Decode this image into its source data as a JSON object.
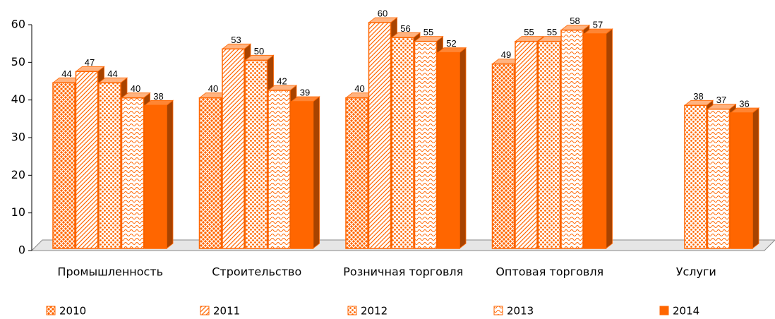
{
  "chart_data": {
    "type": "bar3d",
    "categories": [
      "Промышленность",
      "Строительство",
      "Розничная торговля",
      "Оптовая торговля",
      "Услуги"
    ],
    "series": [
      {
        "name": "2010",
        "color": "#ff6600",
        "pattern": "crosshatch",
        "values": [
          44,
          40,
          40,
          49,
          null
        ]
      },
      {
        "name": "2011",
        "color": "#ff6600",
        "pattern": "diagonal",
        "values": [
          47,
          53,
          60,
          55,
          null
        ]
      },
      {
        "name": "2012",
        "color": "#ff6600",
        "pattern": "dots",
        "values": [
          44,
          50,
          56,
          55,
          38
        ]
      },
      {
        "name": "2013",
        "color": "#ff6600",
        "pattern": "wave",
        "values": [
          40,
          42,
          55,
          58,
          37
        ]
      },
      {
        "name": "2014",
        "color": "#ff6600",
        "pattern": "solid",
        "values": [
          38,
          39,
          52,
          57,
          36
        ]
      }
    ],
    "ylim": [
      0,
      60
    ],
    "yticks": [
      0,
      10,
      20,
      30,
      40,
      50,
      60
    ],
    "grid": false,
    "legend": "bottom"
  }
}
